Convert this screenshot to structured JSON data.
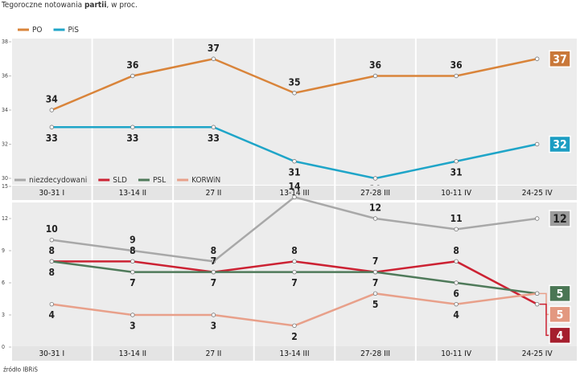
{
  "subtitle": {
    "pre": "Tegoroczne notowania",
    "bold": "partii",
    "post": ", w proc."
  },
  "source": "źródło IBRiS",
  "chart_data": [
    {
      "type": "line",
      "categories": [
        "30-31 I",
        "13-14 II",
        "27 II",
        "13-14 III",
        "27-28 III",
        "10-11 IV",
        "24-25 IV"
      ],
      "series": [
        {
          "name": "PO",
          "color": "#d9843a",
          "box_color": "#c9783a",
          "values": [
            34,
            36,
            37,
            35,
            36,
            36,
            37
          ]
        },
        {
          "name": "PiS",
          "color": "#1fa5c8",
          "box_color": "#1d9dc2",
          "values": [
            33,
            33,
            33,
            31,
            30,
            31,
            32
          ]
        }
      ],
      "ylim": [
        30,
        38
      ],
      "yticks": [
        30,
        32,
        34,
        36,
        38
      ]
    },
    {
      "type": "line",
      "categories": [
        "30-31 I",
        "13-14 II",
        "27 II",
        "13-14 III",
        "27-28 III",
        "10-11 IV",
        "24-25 IV"
      ],
      "series": [
        {
          "name": "niezdecydowani",
          "color": "#a8a8a8",
          "box_color": "#9c9c9c",
          "values": [
            10,
            9,
            8,
            14,
            12,
            11,
            12
          ]
        },
        {
          "name": "SLD",
          "color": "#cc2233",
          "box_color": "#a51e2d",
          "values": [
            8,
            8,
            7,
            8,
            7,
            8,
            4
          ]
        },
        {
          "name": "PSL",
          "color": "#4f7a5a",
          "box_color": "#4a7654",
          "values": [
            8,
            7,
            7,
            7,
            7,
            6,
            5
          ]
        },
        {
          "name": "KORWiN",
          "color": "#e8a08a",
          "box_color": "#e39880",
          "values": [
            4,
            3,
            3,
            2,
            5,
            4,
            5
          ]
        }
      ],
      "ylim": [
        0,
        15
      ],
      "yticks": [
        0,
        3,
        6,
        9,
        12,
        15
      ]
    }
  ]
}
